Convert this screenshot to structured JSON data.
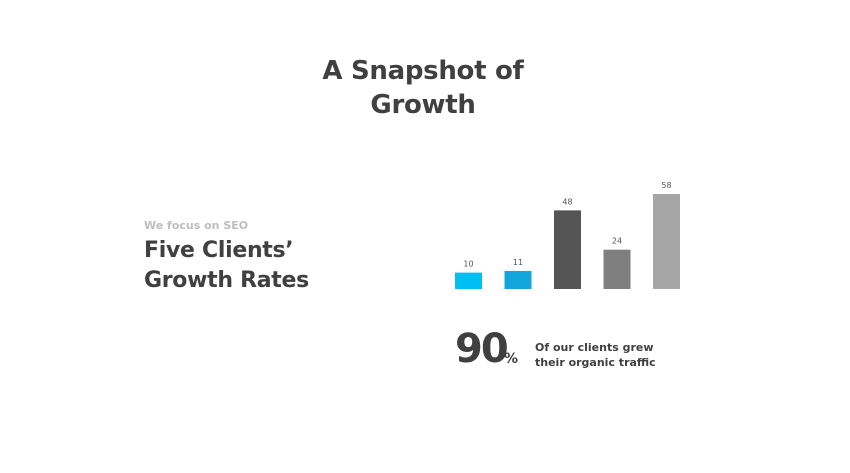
{
  "title": {
    "line1": "A Snapshot of",
    "line2": "Growth"
  },
  "subtitle": "We focus on SEO",
  "heading": {
    "line1": "Five Clients’",
    "line2": "Growth Rates"
  },
  "chart_data": {
    "type": "bar",
    "categories": [
      "",
      "",
      "",
      "",
      ""
    ],
    "values": [
      10,
      11,
      48,
      24,
      58
    ],
    "colors": [
      "#00bff3",
      "#13a6dd",
      "#555555",
      "#7f7f7f",
      "#a6a6a6"
    ],
    "title": "",
    "xlabel": "",
    "ylabel": "",
    "ylim": [
      0,
      58
    ],
    "grid": false,
    "data_labels": true
  },
  "stat": {
    "value": "90",
    "unit": "%",
    "caption_line1": "Of our clients grew",
    "caption_line2": "their organic traffic"
  }
}
